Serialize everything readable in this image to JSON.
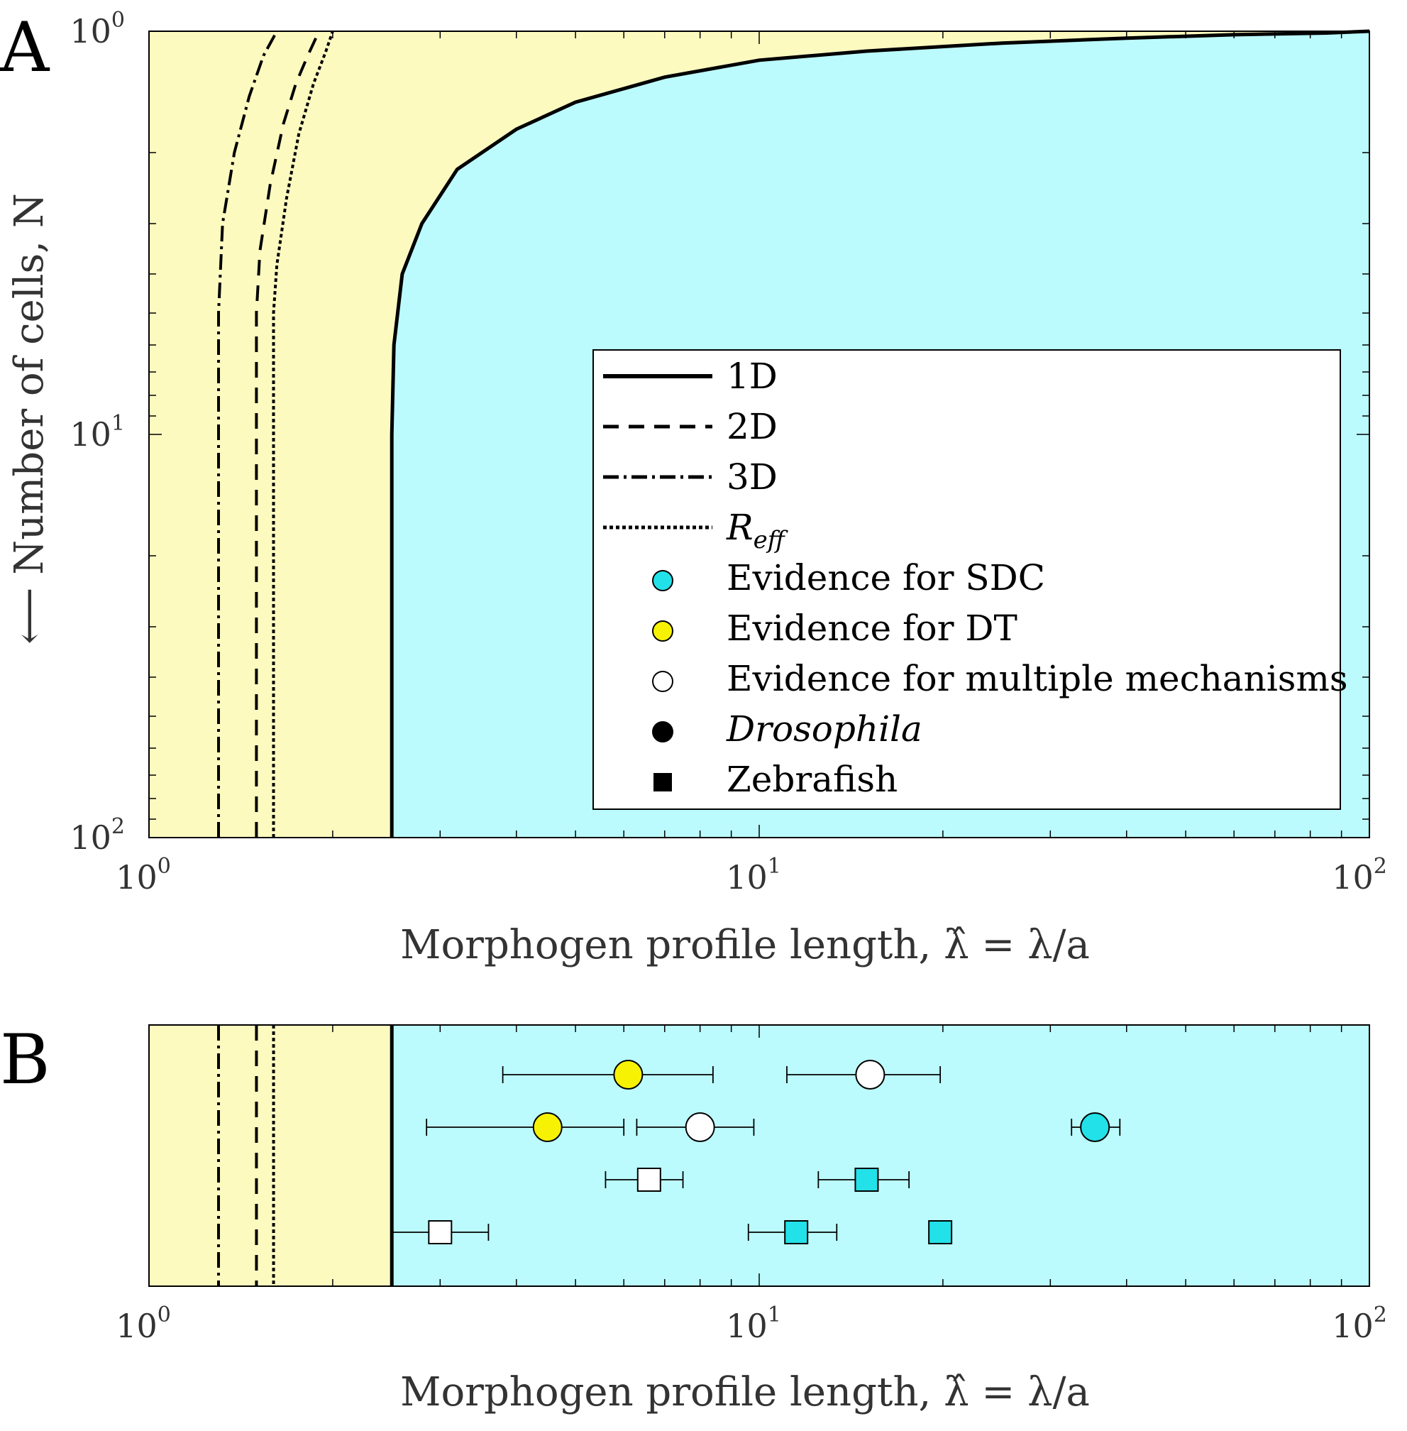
{
  "chart_data": [
    {
      "panel": "A",
      "type": "line",
      "xscale": "log",
      "yscale": "log",
      "y_reversed": true,
      "xlim": [
        1,
        100
      ],
      "ylim": [
        1,
        100
      ],
      "grid": false,
      "xlabel": "Morphogen profile length, λ̂ = λ/a",
      "ylabel": "⟵ Number of cells, N",
      "x_ticks": [
        {
          "base": "10",
          "exp": "0",
          "value": 1
        },
        {
          "base": "10",
          "exp": "1",
          "value": 10
        },
        {
          "base": "10",
          "exp": "2",
          "value": 100
        }
      ],
      "y_ticks": [
        {
          "base": "10",
          "exp": "0",
          "value": 1
        },
        {
          "base": "10",
          "exp": "1",
          "value": 10
        },
        {
          "base": "10",
          "exp": "2",
          "value": 100
        }
      ],
      "regions": [
        {
          "name": "DT",
          "color": "#fdfac0"
        },
        {
          "name": "SDC",
          "color": "#bcfbfd"
        }
      ],
      "series": [
        {
          "name": "1D",
          "style": "solid",
          "x": [
            2.5,
            2.5,
            2.52,
            2.6,
            2.8,
            3.2,
            4,
            5,
            7,
            10,
            15,
            25,
            40,
            60,
            85,
            100
          ],
          "y": [
            100,
            10,
            6,
            4,
            3,
            2.2,
            1.75,
            1.5,
            1.3,
            1.18,
            1.12,
            1.07,
            1.04,
            1.02,
            1.01,
            1.0
          ]
        },
        {
          "name": "2D",
          "style": "dashed",
          "x": [
            1.5,
            1.5,
            1.52,
            1.58,
            1.66,
            1.74,
            1.82,
            1.9
          ],
          "y": [
            100,
            5,
            3.5,
            2.4,
            1.7,
            1.35,
            1.15,
            1.0
          ]
        },
        {
          "name": "3D",
          "style": "dashdot",
          "x": [
            1.3,
            1.3,
            1.32,
            1.38,
            1.46,
            1.54,
            1.62
          ],
          "y": [
            100,
            5,
            3,
            2,
            1.45,
            1.15,
            1.0
          ]
        },
        {
          "name": "R_eff",
          "style": "dotted",
          "x": [
            1.6,
            1.6,
            1.62,
            1.68,
            1.76,
            1.86,
            1.95,
            2.0
          ],
          "y": [
            100,
            5,
            3.8,
            2.6,
            1.8,
            1.35,
            1.12,
            1.0
          ]
        }
      ],
      "legend": {
        "placement": "lower-right",
        "entries": [
          {
            "label": "1D",
            "kind": "line",
            "style": "solid"
          },
          {
            "label": "2D",
            "kind": "line",
            "style": "dashed"
          },
          {
            "label": "3D",
            "kind": "line",
            "style": "dashdot"
          },
          {
            "label": "R",
            "sub": "eff",
            "kind": "line",
            "style": "dotted",
            "italic": true
          },
          {
            "label": "Evidence for SDC",
            "kind": "circle",
            "color": "#22e1e8"
          },
          {
            "label": "Evidence for DT",
            "kind": "circle",
            "color": "#f7f204"
          },
          {
            "label": "Evidence for multiple mechanisms",
            "kind": "circle",
            "color": "#ffffff"
          },
          {
            "label": "Drosophila",
            "kind": "circle",
            "color": "#000000",
            "italic": true
          },
          {
            "label": "Zebrafish",
            "kind": "square",
            "color": "#000000"
          }
        ]
      }
    },
    {
      "panel": "B",
      "type": "scatter",
      "xscale": "log",
      "xlim": [
        1,
        100
      ],
      "grid": false,
      "xlabel": "Morphogen profile length, λ̂ = λ/a",
      "x_ticks": [
        {
          "base": "10",
          "exp": "0",
          "value": 1
        },
        {
          "base": "10",
          "exp": "1",
          "value": 10
        },
        {
          "base": "10",
          "exp": "2",
          "value": 100
        }
      ],
      "boundaries": [
        {
          "name": "1D",
          "x": 2.5,
          "style": "solid"
        },
        {
          "name": "2D",
          "x": 1.5,
          "style": "dashed"
        },
        {
          "name": "3D",
          "x": 1.3,
          "style": "dashdot"
        },
        {
          "name": "R_eff",
          "x": 1.6,
          "style": "dotted"
        }
      ],
      "points": [
        {
          "row": 1,
          "x": 6.1,
          "xmin": 3.8,
          "xmax": 8.4,
          "marker": "circle",
          "color": "#f7f204"
        },
        {
          "row": 1,
          "x": 15.2,
          "xmin": 11.1,
          "xmax": 19.8,
          "marker": "circle",
          "color": "#ffffff"
        },
        {
          "row": 2,
          "x": 4.5,
          "xmin": 2.85,
          "xmax": 6.0,
          "marker": "circle",
          "color": "#f7f204"
        },
        {
          "row": 2,
          "x": 8.0,
          "xmin": 6.3,
          "xmax": 9.8,
          "marker": "circle",
          "color": "#ffffff"
        },
        {
          "row": 2,
          "x": 35.5,
          "xmin": 32.5,
          "xmax": 39.0,
          "marker": "circle",
          "color": "#22e1e8"
        },
        {
          "row": 3,
          "x": 6.6,
          "xmin": 5.6,
          "xmax": 7.5,
          "marker": "square",
          "color": "#ffffff"
        },
        {
          "row": 3,
          "x": 15.0,
          "xmin": 12.5,
          "xmax": 17.6,
          "marker": "square",
          "color": "#22e1e8"
        },
        {
          "row": 4,
          "x": 3.0,
          "xmin": 2.5,
          "xmax": 3.6,
          "marker": "square",
          "color": "#ffffff"
        },
        {
          "row": 4,
          "x": 11.5,
          "xmin": 9.6,
          "xmax": 13.4,
          "marker": "square",
          "color": "#22e1e8"
        },
        {
          "row": 4,
          "x": 19.8,
          "xmin": 19.2,
          "xmax": 20.2,
          "marker": "square",
          "color": "#22e1e8"
        }
      ]
    }
  ],
  "panel_labels": {
    "a": "A",
    "b": "B"
  }
}
